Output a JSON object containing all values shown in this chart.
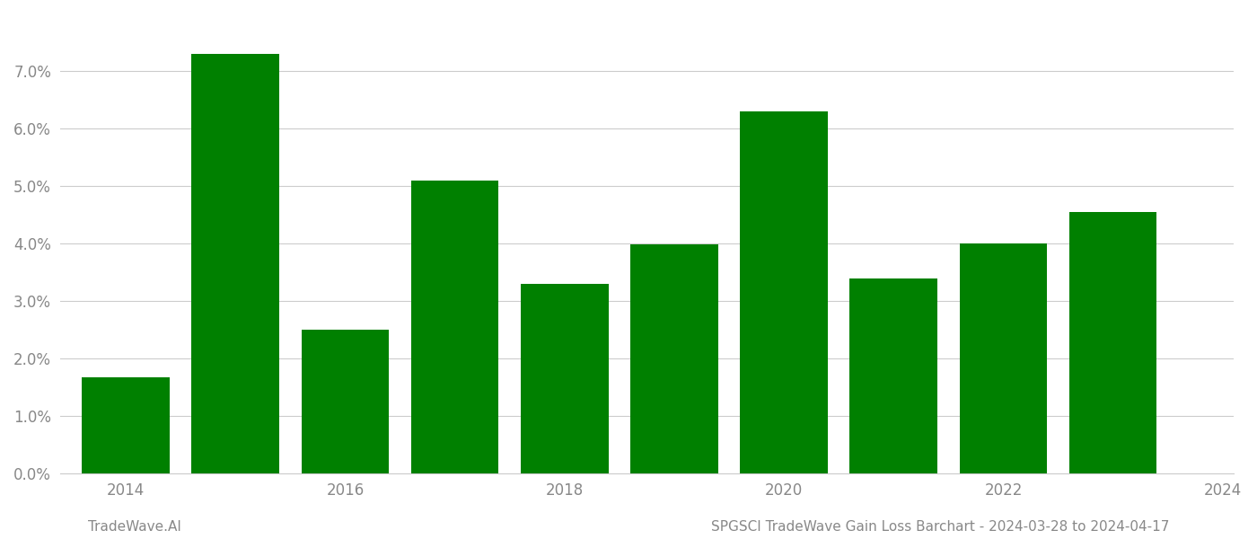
{
  "years": [
    2014,
    2015,
    2016,
    2017,
    2018,
    2019,
    2020,
    2021,
    2022,
    2023
  ],
  "values": [
    0.0168,
    0.073,
    0.025,
    0.051,
    0.033,
    0.0398,
    0.063,
    0.034,
    0.04,
    0.0455
  ],
  "bar_color": "#008000",
  "background_color": "#ffffff",
  "ylim": [
    0,
    0.08
  ],
  "yticks": [
    0.0,
    0.01,
    0.02,
    0.03,
    0.04,
    0.05,
    0.06,
    0.07
  ],
  "xtick_years": [
    2014,
    2016,
    2018,
    2020,
    2022,
    2024
  ],
  "grid_color": "#cccccc",
  "footer_left": "TradeWave.AI",
  "footer_right": "SPGSCI TradeWave Gain Loss Barchart - 2024-03-28 to 2024-04-17",
  "tick_label_color": "#888888",
  "footer_color": "#888888",
  "spine_color": "#cccccc",
  "bar_width": 0.8
}
